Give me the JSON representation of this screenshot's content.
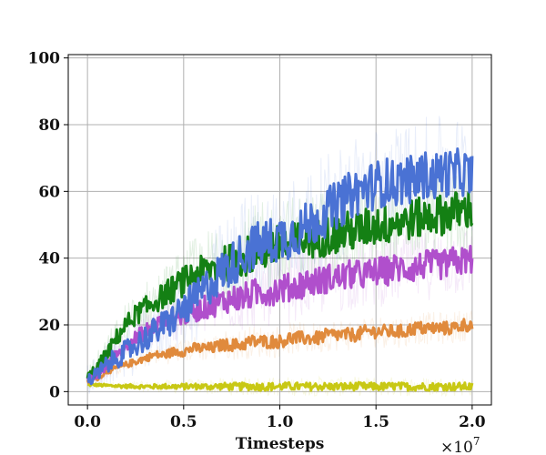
{
  "chart_data": {
    "type": "line",
    "title": "",
    "xlabel": "Timesteps",
    "ylabel": "",
    "x_offset_label": "×10",
    "x_offset_exponent": "7",
    "x_tick_labels": [
      "0.0",
      "0.5",
      "1.0",
      "1.5",
      "2.0"
    ],
    "x_ticks": [
      0.0,
      0.5,
      1.0,
      1.5,
      2.0
    ],
    "y_tick_labels": [
      "0",
      "20",
      "40",
      "60",
      "80",
      "100"
    ],
    "y_ticks": [
      0,
      20,
      40,
      60,
      80,
      100
    ],
    "xlim": [
      -0.1,
      2.1
    ],
    "ylim": [
      -4,
      101
    ],
    "grid": true,
    "legend": "none",
    "x": [
      0.0,
      0.05,
      0.1,
      0.15,
      0.2,
      0.25,
      0.3,
      0.35,
      0.4,
      0.45,
      0.5,
      0.55,
      0.6,
      0.65,
      0.7,
      0.75,
      0.8,
      0.85,
      0.9,
      0.95,
      1.0,
      1.05,
      1.1,
      1.15,
      1.2,
      1.25,
      1.3,
      1.35,
      1.4,
      1.45,
      1.5,
      1.55,
      1.6,
      1.65,
      1.7,
      1.75,
      1.8,
      1.85,
      1.9,
      1.95,
      2.0
    ],
    "series": [
      {
        "color": "#4a72d4",
        "values": [
          3,
          5,
          8,
          10,
          12,
          14,
          16,
          18,
          20,
          22,
          25,
          27,
          30,
          33,
          36,
          38,
          41,
          43,
          44,
          45,
          46,
          47,
          48,
          50,
          52,
          54,
          56,
          58,
          60,
          61,
          62,
          63,
          62,
          64,
          63,
          65,
          64,
          66,
          65,
          66,
          64
        ]
      },
      {
        "color": "#148014",
        "values": [
          4,
          7,
          11,
          16,
          20,
          23,
          25,
          27,
          29,
          31,
          33,
          35,
          36,
          37,
          38,
          39,
          40,
          41,
          42,
          43,
          44,
          44,
          45,
          46,
          46,
          47,
          47,
          48,
          48,
          49,
          50,
          50,
          51,
          51,
          52,
          52,
          53,
          53,
          54,
          54,
          55
        ]
      },
      {
        "color": "#b04fcc",
        "values": [
          3,
          5,
          8,
          11,
          14,
          16,
          18,
          20,
          21,
          22,
          23,
          24,
          25,
          26,
          27,
          28,
          28,
          29,
          30,
          30,
          31,
          31,
          32,
          33,
          33,
          34,
          34,
          35,
          35,
          35,
          36,
          36,
          37,
          37,
          37,
          38,
          38,
          38,
          39,
          39,
          40
        ]
      },
      {
        "color": "#e08a3c",
        "values": [
          3,
          4,
          6,
          7,
          8,
          9,
          10,
          11,
          11,
          12,
          12,
          13,
          13,
          13,
          14,
          14,
          14,
          15,
          15,
          15,
          15,
          16,
          16,
          16,
          16,
          17,
          17,
          17,
          17,
          18,
          18,
          18,
          18,
          18,
          19,
          19,
          19,
          19,
          19,
          20,
          20
        ]
      },
      {
        "color": "#c8c814",
        "values": [
          2,
          2,
          1.8,
          1.7,
          1.6,
          1.6,
          1.5,
          1.5,
          1.6,
          1.5,
          1.5,
          1.6,
          1.5,
          1.5,
          1.6,
          1.5,
          1.5,
          1.6,
          1.5,
          1.5,
          1.5,
          1.6,
          1.5,
          1.5,
          1.6,
          1.5,
          1.5,
          1.5,
          1.6,
          1.5,
          1.5,
          1.5,
          1.6,
          1.5,
          1.5,
          1.5,
          1.5,
          1.6,
          1.5,
          1.5,
          1.5
        ]
      }
    ]
  }
}
